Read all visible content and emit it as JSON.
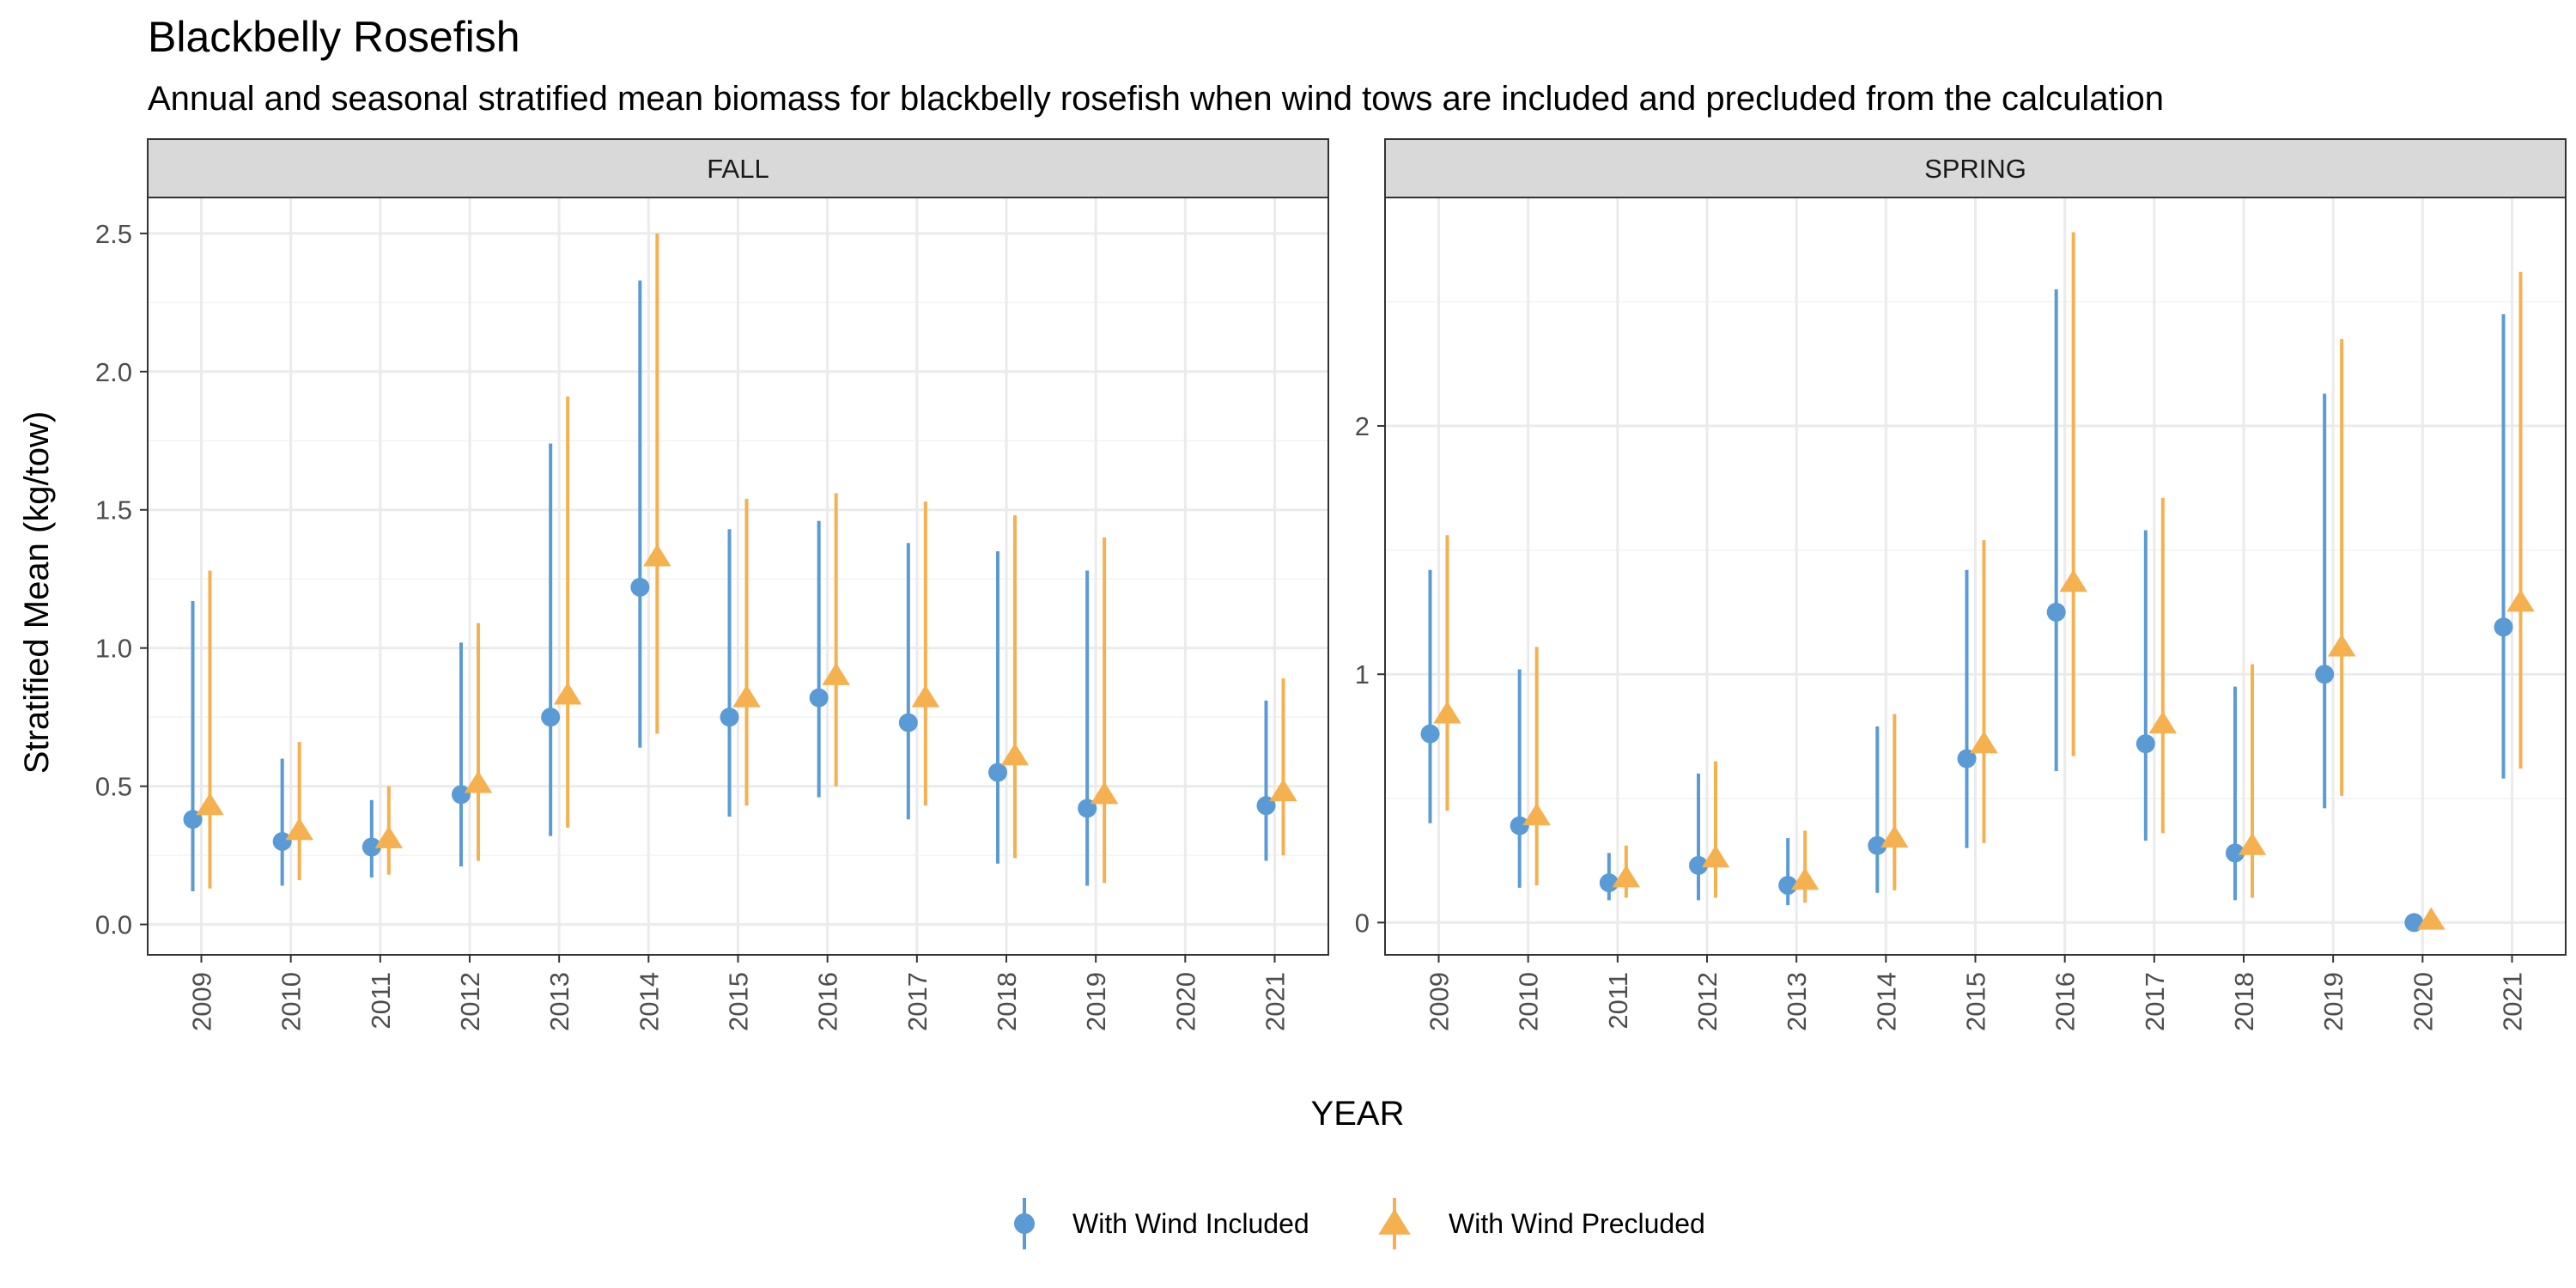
{
  "chart_data": {
    "type": "scatter",
    "title": "Blackbelly Rosefish",
    "subtitle": "Annual and seasonal stratified mean biomass for blackbelly rosefish when wind tows are included and precluded from the calculation",
    "xlabel": "YEAR",
    "ylabel": "Stratified Mean (kg/tow)",
    "legend_position": "bottom",
    "grid": true,
    "categories": [
      "2009",
      "2010",
      "2011",
      "2012",
      "2013",
      "2014",
      "2015",
      "2016",
      "2017",
      "2018",
      "2019",
      "2020",
      "2021"
    ],
    "series_info": [
      {
        "name": "With Wind Included",
        "color": "#5b9bd5",
        "marker": "circle"
      },
      {
        "name": "With Wind Precluded",
        "color": "#f5b04f",
        "marker": "triangle"
      }
    ],
    "panels": [
      {
        "label": "FALL",
        "ylim": [
          -0.11,
          2.63
        ],
        "yticks": [
          0.0,
          0.5,
          1.0,
          1.5,
          2.0,
          2.5
        ],
        "ytick_labels": [
          "0.0",
          "0.5",
          "1.0",
          "1.5",
          "2.0",
          "2.5"
        ],
        "series": [
          {
            "name": "With Wind Included",
            "values": [
              0.38,
              0.3,
              0.28,
              0.47,
              0.75,
              1.22,
              0.75,
              0.82,
              0.73,
              0.55,
              0.42,
              null,
              0.43
            ],
            "lower": [
              0.12,
              0.14,
              0.17,
              0.21,
              0.32,
              0.64,
              0.39,
              0.46,
              0.38,
              0.22,
              0.14,
              null,
              0.23
            ],
            "upper": [
              1.17,
              0.6,
              0.45,
              1.02,
              1.74,
              2.33,
              1.43,
              1.46,
              1.38,
              1.35,
              1.28,
              null,
              0.81
            ]
          },
          {
            "name": "With Wind Precluded",
            "values": [
              0.43,
              0.34,
              0.31,
              0.51,
              0.83,
              1.33,
              0.82,
              0.9,
              0.82,
              0.61,
              0.47,
              null,
              0.48
            ],
            "lower": [
              0.13,
              0.16,
              0.18,
              0.23,
              0.35,
              0.69,
              0.43,
              0.5,
              0.43,
              0.24,
              0.15,
              null,
              0.25
            ],
            "upper": [
              1.28,
              0.66,
              0.5,
              1.09,
              1.91,
              2.5,
              1.54,
              1.56,
              1.53,
              1.48,
              1.4,
              null,
              0.89
            ]
          }
        ]
      },
      {
        "label": "SPRING",
        "ylim": [
          -0.13,
          2.92
        ],
        "yticks": [
          0,
          1,
          2
        ],
        "ytick_labels": [
          "0",
          "1",
          "2"
        ],
        "series": [
          {
            "name": "With Wind Included",
            "values": [
              0.76,
              0.39,
              0.16,
              0.23,
              0.15,
              0.31,
              0.66,
              1.25,
              0.72,
              0.28,
              1.0,
              0.0,
              1.19
            ],
            "lower": [
              0.4,
              0.14,
              0.09,
              0.09,
              0.07,
              0.12,
              0.3,
              0.61,
              0.33,
              0.09,
              0.46,
              0.0,
              0.58
            ],
            "upper": [
              1.42,
              1.02,
              0.28,
              0.6,
              0.34,
              0.79,
              1.42,
              2.55,
              1.58,
              0.95,
              2.13,
              0.0,
              2.45
            ]
          },
          {
            "name": "With Wind Precluded",
            "values": [
              0.84,
              0.43,
              0.18,
              0.26,
              0.17,
              0.34,
              0.72,
              1.37,
              0.8,
              0.31,
              1.11,
              0.01,
              1.29
            ],
            "lower": [
              0.45,
              0.15,
              0.1,
              0.1,
              0.08,
              0.13,
              0.32,
              0.67,
              0.36,
              0.1,
              0.51,
              0.0,
              0.62
            ],
            "upper": [
              1.56,
              1.11,
              0.31,
              0.65,
              0.37,
              0.84,
              1.54,
              2.78,
              1.71,
              1.04,
              2.35,
              0.0,
              2.62
            ]
          }
        ]
      }
    ]
  }
}
